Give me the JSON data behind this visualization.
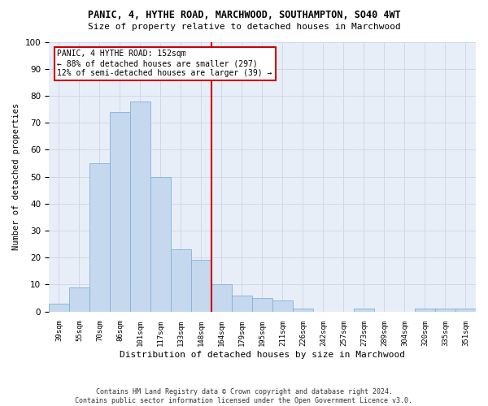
{
  "title": "PANIC, 4, HYTHE ROAD, MARCHWOOD, SOUTHAMPTON, SO40 4WT",
  "subtitle": "Size of property relative to detached houses in Marchwood",
  "xlabel": "Distribution of detached houses by size in Marchwood",
  "ylabel": "Number of detached properties",
  "footer_line1": "Contains HM Land Registry data © Crown copyright and database right 2024.",
  "footer_line2": "Contains public sector information licensed under the Open Government Licence v3.0.",
  "bin_labels": [
    "39sqm",
    "55sqm",
    "70sqm",
    "86sqm",
    "101sqm",
    "117sqm",
    "133sqm",
    "148sqm",
    "164sqm",
    "179sqm",
    "195sqm",
    "211sqm",
    "226sqm",
    "242sqm",
    "257sqm",
    "273sqm",
    "289sqm",
    "304sqm",
    "320sqm",
    "335sqm",
    "351sqm"
  ],
  "bar_heights": [
    3,
    9,
    55,
    74,
    78,
    50,
    23,
    19,
    10,
    6,
    5,
    4,
    1,
    0,
    0,
    1,
    0,
    0,
    1,
    1,
    1
  ],
  "bar_color": "#c5d8ed",
  "bar_edge_color": "#7fb3d9",
  "grid_color": "#d0d8e8",
  "background_color": "#e8eef8",
  "vline_x_index": 7.5,
  "vline_color": "#cc0000",
  "annotation_line1": "PANIC, 4 HYTHE ROAD: 152sqm",
  "annotation_line2": "← 88% of detached houses are smaller (297)",
  "annotation_line3": "12% of semi-detached houses are larger (39) →",
  "annotation_box_color": "#cc0000",
  "ylim": [
    0,
    100
  ],
  "yticks": [
    0,
    10,
    20,
    30,
    40,
    50,
    60,
    70,
    80,
    90,
    100
  ]
}
